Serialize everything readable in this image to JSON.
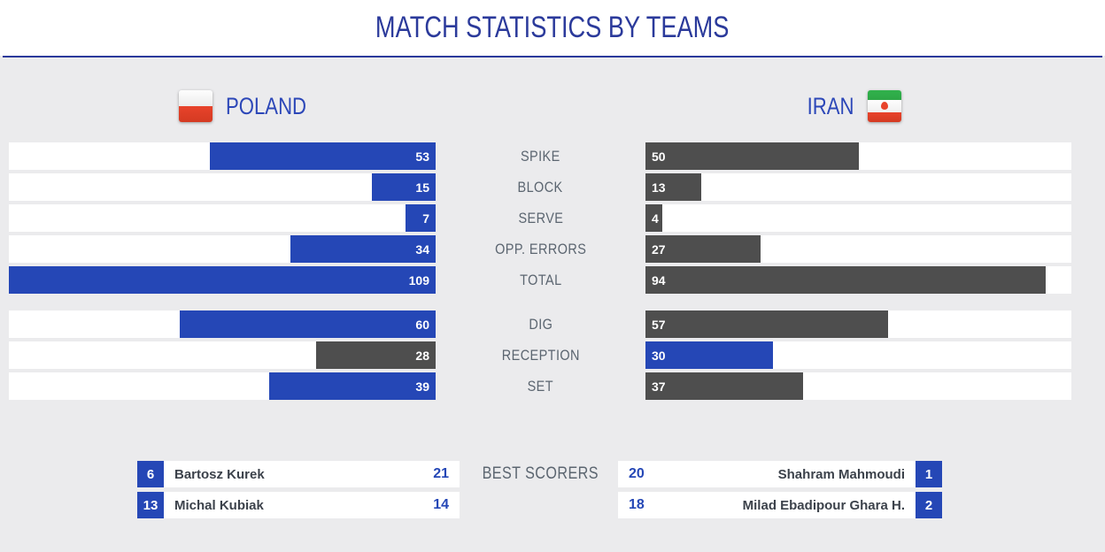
{
  "teams": {
    "home": {
      "name": "POLAND",
      "flag": "poland-flag"
    },
    "away": {
      "name": "IRAN",
      "flag": "iran-flag"
    }
  },
  "chart_data": {
    "type": "bar",
    "orientation": "horizontal",
    "title": "MATCH STATISTICS BY TEAMS",
    "categories": [
      "SPIKE",
      "BLOCK",
      "SERVE",
      "OPP. ERRORS",
      "TOTAL",
      "DIG",
      "RECEPTION",
      "SET"
    ],
    "series": [
      {
        "name": "POLAND",
        "values": [
          53,
          15,
          7,
          34,
          109,
          60,
          28,
          39
        ]
      },
      {
        "name": "IRAN",
        "values": [
          50,
          13,
          4,
          27,
          94,
          57,
          30,
          37
        ]
      }
    ],
    "axis_max": 100,
    "group_break_after": 4,
    "legend_position": "none",
    "grid": false,
    "highlight_rule": "team with higher value in a row gets blue bar, other team gets dark gray bar; bar length is value as % of 100, clamped at 100"
  },
  "best_scorers": {
    "label": "BEST SCORERS",
    "home": [
      {
        "jersey": "6",
        "name": "Bartosz Kurek",
        "points": "21"
      },
      {
        "jersey": "13",
        "name": "Michal Kubiak",
        "points": "14"
      }
    ],
    "away": [
      {
        "jersey": "1",
        "name": "Shahram Mahmoudi",
        "points": "20"
      },
      {
        "jersey": "2",
        "name": "Milad Ebadipour Ghara H.",
        "points": "18"
      }
    ]
  },
  "colors": {
    "leader_bar": "#2547b6",
    "trailer_bar": "#4e4e4e",
    "page_background": "#ebebed",
    "header_background": "#ffffff",
    "track_background": "#ffffff",
    "title_navy": "#2b3a9b",
    "team_name_blue": "#2c47b8",
    "stat_label_gray": "#5b6570",
    "scorer_name_dark": "#3c424b",
    "poland_red": "#e8432b",
    "iran_green": "#2da646",
    "iran_red": "#e8432b"
  }
}
